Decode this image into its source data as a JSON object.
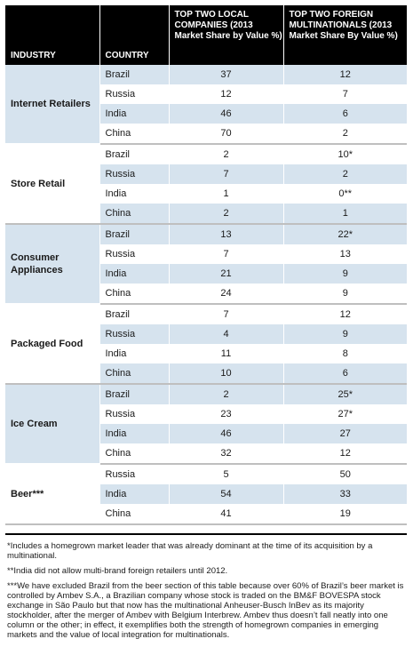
{
  "headers": {
    "industry": "INDUSTRY",
    "country": "COUNTRY",
    "local": "TOP TWO LOCAL COMPANIES (2013 Market Share by Value %)",
    "foreign": "TOP TWO FOREIGN MULTINATIONALS (2013 Market Share By Value %)"
  },
  "groups": [
    {
      "industry": "Internet Retailers",
      "rows": [
        {
          "country": "Brazil",
          "local": "37",
          "foreign": "12"
        },
        {
          "country": "Russia",
          "local": "12",
          "foreign": "7"
        },
        {
          "country": "India",
          "local": "46",
          "foreign": "6"
        },
        {
          "country": "China",
          "local": "70",
          "foreign": "2"
        }
      ]
    },
    {
      "industry": "Store Retail",
      "rows": [
        {
          "country": "Brazil",
          "local": "2",
          "foreign": "10*"
        },
        {
          "country": "Russia",
          "local": "7",
          "foreign": "2"
        },
        {
          "country": "India",
          "local": "1",
          "foreign": "0**"
        },
        {
          "country": "China",
          "local": "2",
          "foreign": "1"
        }
      ]
    },
    {
      "industry": "Consumer Appliances",
      "rows": [
        {
          "country": "Brazil",
          "local": "13",
          "foreign": "22*"
        },
        {
          "country": "Russia",
          "local": "7",
          "foreign": "13"
        },
        {
          "country": "India",
          "local": "21",
          "foreign": "9"
        },
        {
          "country": "China",
          "local": "24",
          "foreign": "9"
        }
      ]
    },
    {
      "industry": "Packaged Food",
      "rows": [
        {
          "country": "Brazil",
          "local": "7",
          "foreign": "12"
        },
        {
          "country": "Russia",
          "local": "4",
          "foreign": "9"
        },
        {
          "country": "India",
          "local": "11",
          "foreign": "8"
        },
        {
          "country": "China",
          "local": "10",
          "foreign": "6"
        }
      ]
    },
    {
      "industry": "Ice Cream",
      "rows": [
        {
          "country": "Brazil",
          "local": "2",
          "foreign": "25*"
        },
        {
          "country": "Russia",
          "local": "23",
          "foreign": "27*"
        },
        {
          "country": "India",
          "local": "46",
          "foreign": "27"
        },
        {
          "country": "China",
          "local": "32",
          "foreign": "12"
        }
      ]
    },
    {
      "industry": "Beer***",
      "rows": [
        {
          "country": "Russia",
          "local": "5",
          "foreign": "50"
        },
        {
          "country": "India",
          "local": "54",
          "foreign": "33"
        },
        {
          "country": "China",
          "local": "41",
          "foreign": "19"
        }
      ]
    }
  ],
  "footnotes": [
    "*Includes a homegrown market leader that was already dominant at the time of its acquisition by a multinational.",
    "**India did not allow multi-brand foreign retailers until 2012.",
    "***We have excluded Brazil from the beer section of this table because over 60% of Brazil’s beer market is controlled by Ambev S.A., a Brazilian company whose stock is traded on the BM&F BOVESPA stock exchange in São Paulo but that now has the multinational Anheuser-Busch InBev as its majority stockholder, after the merger of Ambev with Belgium Interbrew. Ambev thus doesn’t fall neatly into one column or the other; in effect, it exemplifies both the strength of homegrown companies in emerging markets and the value of local integration for multinationals."
  ]
}
